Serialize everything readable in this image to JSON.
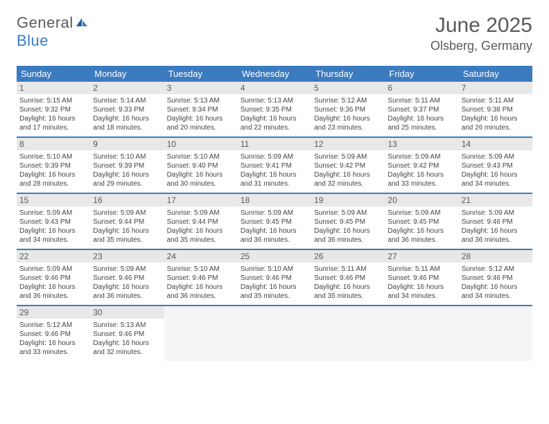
{
  "logo": {
    "general": "General",
    "blue": "Blue"
  },
  "title": "June 2025",
  "location": "Olsberg, Germany",
  "weekdays": [
    "Sunday",
    "Monday",
    "Tuesday",
    "Wednesday",
    "Thursday",
    "Friday",
    "Saturday"
  ],
  "colors": {
    "header_bar": "#3b7bbf",
    "day_number_bg": "#e8e8e8",
    "text_gray": "#5a5a5a",
    "row_divider": "#3b7bbf"
  },
  "days": [
    {
      "n": "1",
      "sr": "5:15 AM",
      "ss": "9:32 PM",
      "dl": "16 hours and 17 minutes."
    },
    {
      "n": "2",
      "sr": "5:14 AM",
      "ss": "9:33 PM",
      "dl": "16 hours and 18 minutes."
    },
    {
      "n": "3",
      "sr": "5:13 AM",
      "ss": "9:34 PM",
      "dl": "16 hours and 20 minutes."
    },
    {
      "n": "4",
      "sr": "5:13 AM",
      "ss": "9:35 PM",
      "dl": "16 hours and 22 minutes."
    },
    {
      "n": "5",
      "sr": "5:12 AM",
      "ss": "9:36 PM",
      "dl": "16 hours and 23 minutes."
    },
    {
      "n": "6",
      "sr": "5:11 AM",
      "ss": "9:37 PM",
      "dl": "16 hours and 25 minutes."
    },
    {
      "n": "7",
      "sr": "5:11 AM",
      "ss": "9:38 PM",
      "dl": "16 hours and 26 minutes."
    },
    {
      "n": "8",
      "sr": "5:10 AM",
      "ss": "9:39 PM",
      "dl": "16 hours and 28 minutes."
    },
    {
      "n": "9",
      "sr": "5:10 AM",
      "ss": "9:39 PM",
      "dl": "16 hours and 29 minutes."
    },
    {
      "n": "10",
      "sr": "5:10 AM",
      "ss": "9:40 PM",
      "dl": "16 hours and 30 minutes."
    },
    {
      "n": "11",
      "sr": "5:09 AM",
      "ss": "9:41 PM",
      "dl": "16 hours and 31 minutes."
    },
    {
      "n": "12",
      "sr": "5:09 AM",
      "ss": "9:42 PM",
      "dl": "16 hours and 32 minutes."
    },
    {
      "n": "13",
      "sr": "5:09 AM",
      "ss": "9:42 PM",
      "dl": "16 hours and 33 minutes."
    },
    {
      "n": "14",
      "sr": "5:09 AM",
      "ss": "9:43 PM",
      "dl": "16 hours and 34 minutes."
    },
    {
      "n": "15",
      "sr": "5:09 AM",
      "ss": "9:43 PM",
      "dl": "16 hours and 34 minutes."
    },
    {
      "n": "16",
      "sr": "5:09 AM",
      "ss": "9:44 PM",
      "dl": "16 hours and 35 minutes."
    },
    {
      "n": "17",
      "sr": "5:09 AM",
      "ss": "9:44 PM",
      "dl": "16 hours and 35 minutes."
    },
    {
      "n": "18",
      "sr": "5:09 AM",
      "ss": "9:45 PM",
      "dl": "16 hours and 36 minutes."
    },
    {
      "n": "19",
      "sr": "5:09 AM",
      "ss": "9:45 PM",
      "dl": "16 hours and 36 minutes."
    },
    {
      "n": "20",
      "sr": "5:09 AM",
      "ss": "9:45 PM",
      "dl": "16 hours and 36 minutes."
    },
    {
      "n": "21",
      "sr": "5:09 AM",
      "ss": "9:46 PM",
      "dl": "16 hours and 36 minutes."
    },
    {
      "n": "22",
      "sr": "5:09 AM",
      "ss": "9:46 PM",
      "dl": "16 hours and 36 minutes."
    },
    {
      "n": "23",
      "sr": "5:09 AM",
      "ss": "9:46 PM",
      "dl": "16 hours and 36 minutes."
    },
    {
      "n": "24",
      "sr": "5:10 AM",
      "ss": "9:46 PM",
      "dl": "16 hours and 36 minutes."
    },
    {
      "n": "25",
      "sr": "5:10 AM",
      "ss": "9:46 PM",
      "dl": "16 hours and 35 minutes."
    },
    {
      "n": "26",
      "sr": "5:11 AM",
      "ss": "9:46 PM",
      "dl": "16 hours and 35 minutes."
    },
    {
      "n": "27",
      "sr": "5:11 AM",
      "ss": "9:46 PM",
      "dl": "16 hours and 34 minutes."
    },
    {
      "n": "28",
      "sr": "5:12 AM",
      "ss": "9:46 PM",
      "dl": "16 hours and 34 minutes."
    },
    {
      "n": "29",
      "sr": "5:12 AM",
      "ss": "9:46 PM",
      "dl": "16 hours and 33 minutes."
    },
    {
      "n": "30",
      "sr": "5:13 AM",
      "ss": "9:46 PM",
      "dl": "16 hours and 32 minutes."
    }
  ],
  "labels": {
    "sunrise": "Sunrise: ",
    "sunset": "Sunset: ",
    "daylight": "Daylight: "
  }
}
